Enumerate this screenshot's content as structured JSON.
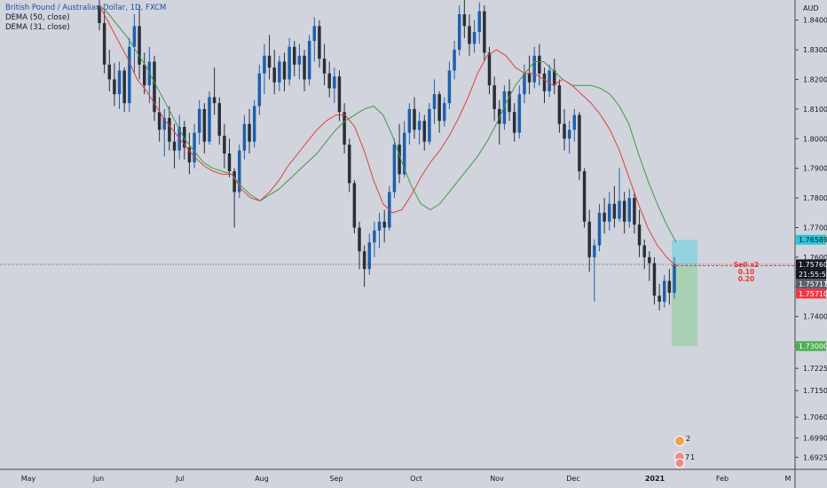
{
  "header": {
    "symbol": "British Pound / Australian Dollar, 1D, FXCM",
    "indicators": [
      "DEMA (50, close)",
      "DEMA (31, close)"
    ]
  },
  "chart_data": {
    "type": "candlestick",
    "price_axis": {
      "currency_label": "AUD",
      "ylim": [
        1.6884,
        1.8468
      ],
      "ticks": [
        "1.84000",
        "1.83000",
        "1.82000",
        "1.81000",
        "1.80000",
        "1.79000",
        "1.78000",
        "1.77000",
        "1.76000",
        "1.75000",
        "1.74000",
        "1.73000",
        "1.72250",
        "1.71500",
        "1.70600",
        "1.69900",
        "1.69250"
      ]
    },
    "time_axis": {
      "labels": [
        "May",
        "Jun",
        "Jul",
        "Aug",
        "Sep",
        "Oct",
        "Nov",
        "Dec",
        "2021",
        "Feb",
        "M"
      ],
      "bold_label": "2021"
    },
    "candles": [
      [
        1.845,
        1.852,
        1.8365,
        1.839
      ],
      [
        1.839,
        1.843,
        1.822,
        1.825
      ],
      [
        1.825,
        1.83,
        1.816,
        1.82
      ],
      [
        1.82,
        1.8255,
        1.811,
        1.815
      ],
      [
        1.815,
        1.826,
        1.81,
        1.823
      ],
      [
        1.823,
        1.824,
        1.809,
        1.812
      ],
      [
        1.812,
        1.834,
        1.809,
        1.831
      ],
      [
        1.831,
        1.842,
        1.822,
        1.838
      ],
      [
        1.838,
        1.845,
        1.82,
        1.825
      ],
      [
        1.825,
        1.829,
        1.815,
        1.818
      ],
      [
        1.818,
        1.831,
        1.812,
        1.826
      ],
      [
        1.826,
        1.828,
        1.806,
        1.809
      ],
      [
        1.809,
        1.814,
        1.799,
        1.803
      ],
      [
        1.803,
        1.81,
        1.794,
        1.807
      ],
      [
        1.807,
        1.811,
        1.796,
        1.799
      ],
      [
        1.799,
        1.805,
        1.79,
        1.796
      ],
      [
        1.796,
        1.808,
        1.793,
        1.804
      ],
      [
        1.804,
        1.806,
        1.793,
        1.797
      ],
      [
        1.797,
        1.802,
        1.788,
        1.792
      ],
      [
        1.792,
        1.805,
        1.79,
        1.802
      ],
      [
        1.802,
        1.813,
        1.798,
        1.81
      ],
      [
        1.81,
        1.812,
        1.795,
        1.799
      ],
      [
        1.799,
        1.816,
        1.798,
        1.814
      ],
      [
        1.814,
        1.824,
        1.808,
        1.812
      ],
      [
        1.812,
        1.814,
        1.798,
        1.801
      ],
      [
        1.801,
        1.805,
        1.79,
        1.795
      ],
      [
        1.795,
        1.8,
        1.787,
        1.789
      ],
      [
        1.789,
        1.79,
        1.77,
        1.782
      ],
      [
        1.782,
        1.798,
        1.78,
        1.796
      ],
      [
        1.796,
        1.808,
        1.793,
        1.805
      ],
      [
        1.805,
        1.81,
        1.795,
        1.799
      ],
      [
        1.799,
        1.813,
        1.797,
        1.811
      ],
      [
        1.811,
        1.825,
        1.808,
        1.822
      ],
      [
        1.822,
        1.832,
        1.815,
        1.828
      ],
      [
        1.828,
        1.835,
        1.82,
        1.824
      ],
      [
        1.824,
        1.83,
        1.815,
        1.819
      ],
      [
        1.819,
        1.828,
        1.816,
        1.826
      ],
      [
        1.826,
        1.829,
        1.816,
        1.82
      ],
      [
        1.82,
        1.834,
        1.818,
        1.831
      ],
      [
        1.831,
        1.833,
        1.821,
        1.825
      ],
      [
        1.825,
        1.832,
        1.82,
        1.828
      ],
      [
        1.828,
        1.83,
        1.816,
        1.82
      ],
      [
        1.82,
        1.835,
        1.818,
        1.833
      ],
      [
        1.833,
        1.841,
        1.826,
        1.838
      ],
      [
        1.838,
        1.84,
        1.824,
        1.827
      ],
      [
        1.827,
        1.832,
        1.818,
        1.822
      ],
      [
        1.822,
        1.826,
        1.814,
        1.817
      ],
      [
        1.817,
        1.824,
        1.812,
        1.821
      ],
      [
        1.821,
        1.823,
        1.806,
        1.809
      ],
      [
        1.809,
        1.812,
        1.795,
        1.798
      ],
      [
        1.798,
        1.8,
        1.782,
        1.785
      ],
      [
        1.785,
        1.786,
        1.768,
        1.77
      ],
      [
        1.77,
        1.772,
        1.756,
        1.762
      ],
      [
        1.762,
        1.764,
        1.75,
        1.756
      ],
      [
        1.756,
        1.768,
        1.754,
        1.765
      ],
      [
        1.765,
        1.772,
        1.76,
        1.769
      ],
      [
        1.769,
        1.775,
        1.763,
        1.772
      ],
      [
        1.772,
        1.776,
        1.765,
        1.77
      ],
      [
        1.77,
        1.784,
        1.769,
        1.782
      ],
      [
        1.782,
        1.8,
        1.78,
        1.798
      ],
      [
        1.798,
        1.805,
        1.785,
        1.788
      ],
      [
        1.788,
        1.806,
        1.787,
        1.802
      ],
      [
        1.802,
        1.812,
        1.798,
        1.81
      ],
      [
        1.81,
        1.814,
        1.8,
        1.803
      ],
      [
        1.803,
        1.809,
        1.798,
        1.806
      ],
      [
        1.806,
        1.808,
        1.796,
        1.799
      ],
      [
        1.799,
        1.812,
        1.798,
        1.81
      ],
      [
        1.81,
        1.82,
        1.805,
        1.815
      ],
      [
        1.815,
        1.816,
        1.802,
        1.806
      ],
      [
        1.806,
        1.814,
        1.804,
        1.812
      ],
      [
        1.812,
        1.826,
        1.81,
        1.823
      ],
      [
        1.823,
        1.833,
        1.82,
        1.83
      ],
      [
        1.83,
        1.845,
        1.828,
        1.842
      ],
      [
        1.842,
        1.848,
        1.834,
        1.838
      ],
      [
        1.838,
        1.842,
        1.828,
        1.832
      ],
      [
        1.832,
        1.84,
        1.829,
        1.836
      ],
      [
        1.836,
        1.846,
        1.832,
        1.843
      ],
      [
        1.843,
        1.845,
        1.826,
        1.829
      ],
      [
        1.829,
        1.831,
        1.815,
        1.818
      ],
      [
        1.818,
        1.821,
        1.806,
        1.81
      ],
      [
        1.81,
        1.813,
        1.798,
        1.805
      ],
      [
        1.805,
        1.818,
        1.803,
        1.816
      ],
      [
        1.816,
        1.82,
        1.806,
        1.809
      ],
      [
        1.809,
        1.812,
        1.799,
        1.802
      ],
      [
        1.802,
        1.818,
        1.8,
        1.815
      ],
      [
        1.815,
        1.825,
        1.812,
        1.822
      ],
      [
        1.822,
        1.828,
        1.815,
        1.819
      ],
      [
        1.819,
        1.831,
        1.817,
        1.828
      ],
      [
        1.828,
        1.832,
        1.818,
        1.822
      ],
      [
        1.822,
        1.824,
        1.812,
        1.816
      ],
      [
        1.816,
        1.825,
        1.814,
        1.823
      ],
      [
        1.823,
        1.827,
        1.815,
        1.818
      ],
      [
        1.818,
        1.82,
        1.802,
        1.805
      ],
      [
        1.805,
        1.81,
        1.796,
        1.8
      ],
      [
        1.8,
        1.806,
        1.795,
        1.803
      ],
      [
        1.803,
        1.81,
        1.799,
        1.808
      ],
      [
        1.808,
        1.809,
        1.786,
        1.789
      ],
      [
        1.789,
        1.79,
        1.77,
        1.772
      ],
      [
        1.772,
        1.776,
        1.755,
        1.76
      ],
      [
        1.76,
        1.766,
        1.745,
        1.764
      ],
      [
        1.764,
        1.778,
        1.762,
        1.775
      ],
      [
        1.775,
        1.78,
        1.768,
        1.772
      ],
      [
        1.772,
        1.782,
        1.769,
        1.778
      ],
      [
        1.778,
        1.784,
        1.77,
        1.773
      ],
      [
        1.773,
        1.79,
        1.772,
        1.779
      ],
      [
        1.779,
        1.782,
        1.768,
        1.772
      ],
      [
        1.772,
        1.783,
        1.77,
        1.78
      ],
      [
        1.78,
        1.782,
        1.768,
        1.771
      ],
      [
        1.771,
        1.776,
        1.76,
        1.764
      ],
      [
        1.764,
        1.766,
        1.756,
        1.76
      ],
      [
        1.76,
        1.762,
        1.752,
        1.758
      ],
      [
        1.758,
        1.76,
        1.744,
        1.747
      ],
      [
        1.747,
        1.751,
        1.742,
        1.745
      ],
      [
        1.745,
        1.754,
        1.743,
        1.752
      ],
      [
        1.752,
        1.756,
        1.744,
        1.748
      ],
      [
        1.748,
        1.76,
        1.746,
        1.7576
      ]
    ],
    "dema_50": [
      1.845,
      1.842,
      1.838,
      1.834,
      1.829,
      1.824,
      1.818,
      1.812,
      1.806,
      1.8,
      1.796,
      1.792,
      1.79,
      1.789,
      1.788,
      1.784,
      1.781,
      1.779,
      1.781,
      1.783,
      1.786,
      1.789,
      1.792,
      1.795,
      1.799,
      1.803,
      1.806,
      1.808,
      1.81,
      1.811,
      1.808,
      1.801,
      1.792,
      1.784,
      1.778,
      1.776,
      1.778,
      1.782,
      1.786,
      1.79,
      1.794,
      1.799,
      1.805,
      1.812,
      1.818,
      1.822,
      1.826,
      1.826,
      1.823,
      1.82,
      1.818,
      1.818,
      1.818,
      1.817,
      1.815,
      1.811,
      1.805,
      1.795,
      1.786,
      1.778,
      1.771,
      1.765
    ],
    "dema_31": [
      1.845,
      1.839,
      1.833,
      1.827,
      1.82,
      1.816,
      1.811,
      1.806,
      1.802,
      1.798,
      1.794,
      1.791,
      1.789,
      1.788,
      1.788,
      1.783,
      1.78,
      1.779,
      1.782,
      1.786,
      1.791,
      1.795,
      1.799,
      1.803,
      1.806,
      1.808,
      1.808,
      1.804,
      1.796,
      1.786,
      1.778,
      1.775,
      1.776,
      1.781,
      1.787,
      1.792,
      1.796,
      1.801,
      1.807,
      1.814,
      1.822,
      1.828,
      1.83,
      1.828,
      1.824,
      1.822,
      1.822,
      1.82,
      1.818,
      1.82,
      1.818,
      1.815,
      1.812,
      1.808,
      1.803,
      1.796,
      1.787,
      1.778,
      1.77,
      1.764,
      1.76,
      1.757
    ],
    "price_labels": [
      {
        "text": "1.76589",
        "bg": "#26c6da",
        "fg": "#131722"
      },
      {
        "text": "1.75760",
        "bg": "#131722",
        "fg": "#ffffff"
      },
      {
        "text": "21:55:55",
        "bg": "#131722",
        "fg": "#ffffff"
      },
      {
        "text": "1.75711",
        "bg": "#5d606b",
        "fg": "#ffffff"
      },
      {
        "text": "1.75710",
        "bg": "#f23645",
        "fg": "#ffffff"
      },
      {
        "text": "1.73000",
        "bg": "#4caf50",
        "fg": "#ffffff"
      }
    ],
    "position": {
      "side": "Sell x2",
      "qty": [
        "0.10",
        "0.20"
      ],
      "entry": 1.7571,
      "stop": 1.76589,
      "target": 1.73
    },
    "last_price": 1.7576,
    "event_badges": [
      "2",
      "7",
      "1"
    ],
    "colors": {
      "background": "#d1d4dc",
      "bull_candle": "#1e5fad",
      "bear_candle": "#2a2e39",
      "dema_50": "#3f9a4a",
      "dema_31": "#e04040",
      "stop_zone": "#7fd3dd",
      "target_zone": "#9ccfa6",
      "order_text": "#e53935"
    }
  }
}
